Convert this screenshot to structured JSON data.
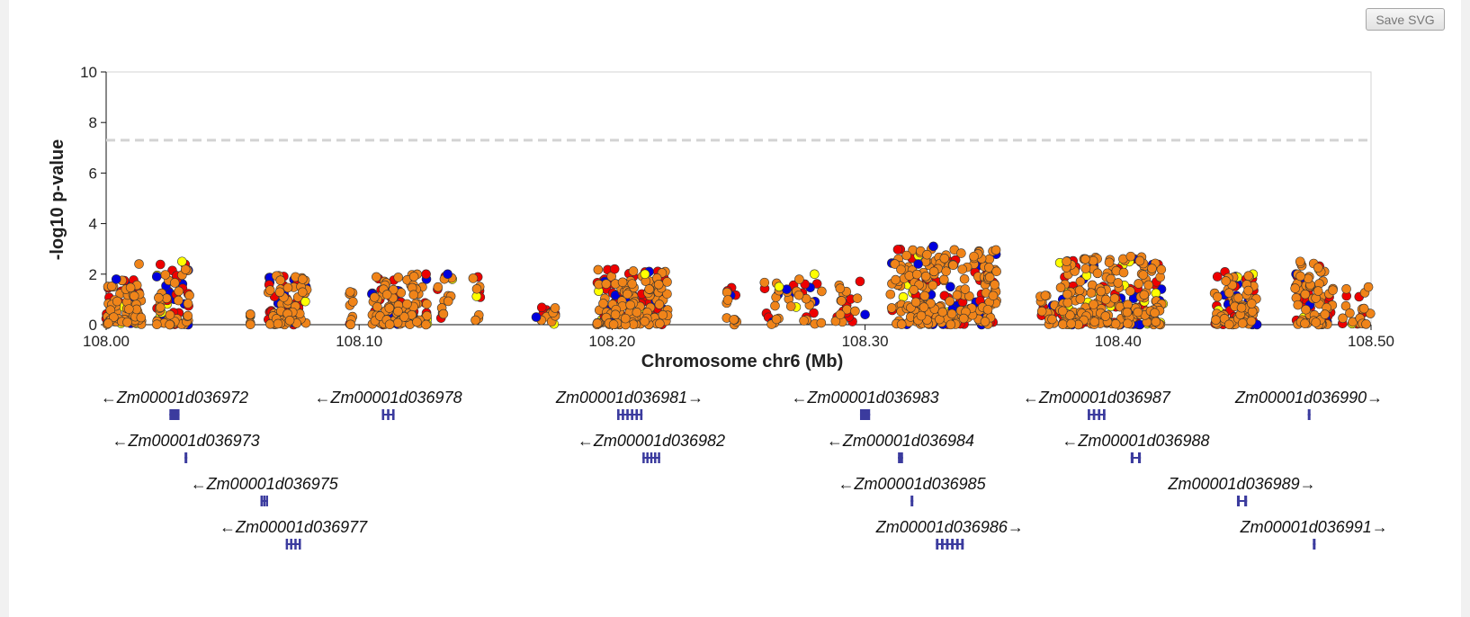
{
  "toolbar": {
    "save_label": "Save SVG"
  },
  "chart_data": {
    "type": "scatter",
    "title": "",
    "xlabel": "Chromosome chr6 (Mb)",
    "ylabel": "-log10 p-value",
    "xlim": [
      108.0,
      108.5
    ],
    "ylim": [
      0,
      10
    ],
    "x_ticks": [
      "108.00",
      "108.10",
      "108.20",
      "108.30",
      "108.40",
      "108.50"
    ],
    "y_ticks": [
      "0",
      "2",
      "4",
      "6",
      "8",
      "10"
    ],
    "significance_threshold": 7.3,
    "colors": {
      "blue": "#0000dd",
      "red": "#ee0000",
      "yellow": "#ffff00",
      "orange": "#f08419",
      "threshold": "#d3d3d3",
      "gene": "#3b3b9e"
    },
    "snp_clusters": [
      {
        "x0": 108.0,
        "x1": 108.014,
        "ymax": 1.8,
        "dense": true
      },
      {
        "x0": 108.02,
        "x1": 108.033,
        "ymax": 2.4,
        "dense": true
      },
      {
        "x0": 108.057,
        "x1": 108.057,
        "ymax": 0.6,
        "dense": false
      },
      {
        "x0": 108.064,
        "x1": 108.08,
        "ymax": 2.1,
        "dense": true
      },
      {
        "x0": 108.096,
        "x1": 108.098,
        "ymax": 1.4,
        "dense": false
      },
      {
        "x0": 108.105,
        "x1": 108.127,
        "ymax": 2.0,
        "dense": true
      },
      {
        "x0": 108.131,
        "x1": 108.137,
        "ymax": 2.0,
        "dense": false
      },
      {
        "x0": 108.145,
        "x1": 108.148,
        "ymax": 2.0,
        "dense": false
      },
      {
        "x0": 108.172,
        "x1": 108.178,
        "ymax": 0.7,
        "dense": false
      },
      {
        "x0": 108.194,
        "x1": 108.222,
        "ymax": 2.2,
        "dense": true
      },
      {
        "x0": 108.245,
        "x1": 108.25,
        "ymax": 1.8,
        "dense": false
      },
      {
        "x0": 108.26,
        "x1": 108.283,
        "ymax": 2.0,
        "dense": false
      },
      {
        "x0": 108.288,
        "x1": 108.298,
        "ymax": 1.9,
        "dense": false
      },
      {
        "x0": 108.31,
        "x1": 108.352,
        "ymax": 3.0,
        "dense": true
      },
      {
        "x0": 108.368,
        "x1": 108.375,
        "ymax": 1.2,
        "dense": false
      },
      {
        "x0": 108.377,
        "x1": 108.418,
        "ymax": 2.7,
        "dense": true
      },
      {
        "x0": 108.438,
        "x1": 108.455,
        "ymax": 2.1,
        "dense": true
      },
      {
        "x0": 108.47,
        "x1": 108.485,
        "ymax": 2.5,
        "dense": true
      },
      {
        "x0": 108.488,
        "x1": 108.5,
        "ymax": 1.6,
        "dense": false
      }
    ],
    "snp_highlights": [
      {
        "x": 108.013,
        "y": 2.4,
        "color": "orange"
      },
      {
        "x": 108.03,
        "y": 2.5,
        "color": "yellow"
      },
      {
        "x": 108.02,
        "y": 1.9,
        "color": "blue"
      },
      {
        "x": 108.004,
        "y": 1.8,
        "color": "blue"
      },
      {
        "x": 108.201,
        "y": 2.2,
        "color": "red"
      },
      {
        "x": 108.213,
        "y": 2.0,
        "color": "yellow"
      },
      {
        "x": 108.28,
        "y": 2.0,
        "color": "yellow"
      },
      {
        "x": 108.327,
        "y": 3.1,
        "color": "blue"
      },
      {
        "x": 108.321,
        "y": 2.4,
        "color": "blue"
      },
      {
        "x": 108.343,
        "y": 2.7,
        "color": "orange"
      },
      {
        "x": 108.402,
        "y": 2.6,
        "color": "orange"
      },
      {
        "x": 108.405,
        "y": 2.7,
        "color": "orange"
      },
      {
        "x": 108.472,
        "y": 2.5,
        "color": "orange"
      },
      {
        "x": 108.135,
        "y": 2.0,
        "color": "blue"
      },
      {
        "x": 108.269,
        "y": 1.4,
        "color": "blue"
      },
      {
        "x": 108.266,
        "y": 1.5,
        "color": "yellow"
      },
      {
        "x": 108.17,
        "y": 0.3,
        "color": "blue"
      },
      {
        "x": 108.3,
        "y": 0.4,
        "color": "blue"
      }
    ],
    "genes": [
      {
        "name": "Zm00001d036972",
        "label": "←Zm00001d036972",
        "start": 108.025,
        "end": 108.029,
        "row": 0,
        "exons": 1
      },
      {
        "name": "Zm00001d036973",
        "label": "←Zm00001d036973",
        "start": 108.031,
        "end": 108.032,
        "row": 1,
        "exons": 1
      },
      {
        "name": "Zm00001d036975",
        "label": "←Zm00001d036975",
        "start": 108.061,
        "end": 108.064,
        "row": 2,
        "exons": 3
      },
      {
        "name": "Zm00001d036977",
        "label": "←Zm00001d036977",
        "start": 108.071,
        "end": 108.077,
        "row": 3,
        "exons": 4
      },
      {
        "name": "Zm00001d036978",
        "label": "←Zm00001d036978",
        "start": 108.109,
        "end": 108.114,
        "row": 0,
        "exons": 3
      },
      {
        "name": "Zm00001d036981",
        "label": "Zm00001d036981→",
        "start": 108.202,
        "end": 108.212,
        "row": 0,
        "exons": 6
      },
      {
        "name": "Zm00001d036982",
        "label": "←Zm00001d036982",
        "start": 108.212,
        "end": 108.219,
        "row": 1,
        "exons": 5
      },
      {
        "name": "Zm00001d036983",
        "label": "←Zm00001d036983",
        "start": 108.298,
        "end": 108.302,
        "row": 0,
        "exons": 1
      },
      {
        "name": "Zm00001d036984",
        "label": "←Zm00001d036984",
        "start": 108.313,
        "end": 108.315,
        "row": 1,
        "exons": 1
      },
      {
        "name": "Zm00001d036985",
        "label": "←Zm00001d036985",
        "start": 108.318,
        "end": 108.319,
        "row": 2,
        "exons": 1
      },
      {
        "name": "Zm00001d036986",
        "label": "Zm00001d036986→",
        "start": 108.328,
        "end": 108.339,
        "row": 3,
        "exons": 6
      },
      {
        "name": "Zm00001d036987",
        "label": "←Zm00001d036987",
        "start": 108.388,
        "end": 108.395,
        "row": 0,
        "exons": 4
      },
      {
        "name": "Zm00001d036988",
        "label": "←Zm00001d036988",
        "start": 108.405,
        "end": 108.409,
        "row": 1,
        "exons": 2
      },
      {
        "name": "Zm00001d036989",
        "label": "Zm00001d036989→",
        "start": 108.447,
        "end": 108.451,
        "row": 2,
        "exons": 2
      },
      {
        "name": "Zm00001d036990",
        "label": "Zm00001d036990→",
        "start": 108.475,
        "end": 108.476,
        "row": 0,
        "exons": 1
      },
      {
        "name": "Zm00001d036991",
        "label": "Zm00001d036991→",
        "start": 108.477,
        "end": 108.478,
        "row": 3,
        "exons": 1
      }
    ]
  }
}
